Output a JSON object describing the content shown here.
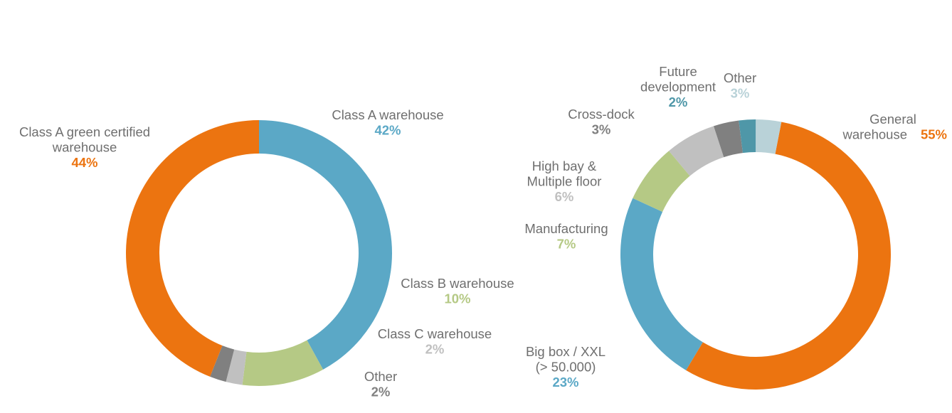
{
  "chart_data": [
    {
      "type": "pie",
      "variant": "donut",
      "title": "",
      "slices": [
        {
          "name": "Class A warehouse",
          "value": 42,
          "label": "42%",
          "color": "#5BA8C6",
          "label_lines": [
            "Class A warehouse"
          ]
        },
        {
          "name": "Class B warehouse",
          "value": 10,
          "label": "10%",
          "color": "#B5C985",
          "label_lines": [
            "Class B warehouse"
          ]
        },
        {
          "name": "Class C warehouse",
          "value": 2,
          "label": "2%",
          "color": "#C0C0C0",
          "label_lines": [
            "Class C warehouse"
          ]
        },
        {
          "name": "Other",
          "value": 2,
          "label": "2%",
          "color": "#808080",
          "label_lines": [
            "Other"
          ]
        },
        {
          "name": "Class A green certified warehouse",
          "value": 44,
          "label": "44%",
          "color": "#EC7410",
          "label_lines": [
            "Class A green certified",
            "warehouse"
          ]
        }
      ]
    },
    {
      "type": "pie",
      "variant": "donut",
      "title": "",
      "slices": [
        {
          "name": "General warehouse",
          "value": 55,
          "label": "55%",
          "color": "#EC7410",
          "label_lines": [
            "General",
            "warehouse"
          ]
        },
        {
          "name": "Big box / XXL (> 50.000)",
          "value": 23,
          "label": "23%",
          "color": "#5BA8C6",
          "label_lines": [
            "Big box / XXL",
            "(> 50.000)"
          ]
        },
        {
          "name": "Manufacturing",
          "value": 7,
          "label": "7%",
          "color": "#B5C985",
          "label_lines": [
            "Manufacturing"
          ]
        },
        {
          "name": "High bay & Multiple floor",
          "value": 6,
          "label": "6%",
          "color": "#C0C0C0",
          "label_lines": [
            "High bay &",
            "Multiple floor"
          ]
        },
        {
          "name": "Cross-dock",
          "value": 3,
          "label": "3%",
          "color": "#808080",
          "label_lines": [
            "Cross-dock"
          ]
        },
        {
          "name": "Future development",
          "value": 2,
          "label": "2%",
          "color": "#4F97A8",
          "label_lines": [
            "Future",
            "development"
          ]
        },
        {
          "name": "Other",
          "value": 3,
          "label": "3%",
          "color": "#B9D2D8",
          "label_lines": [
            "Other"
          ]
        }
      ]
    }
  ]
}
